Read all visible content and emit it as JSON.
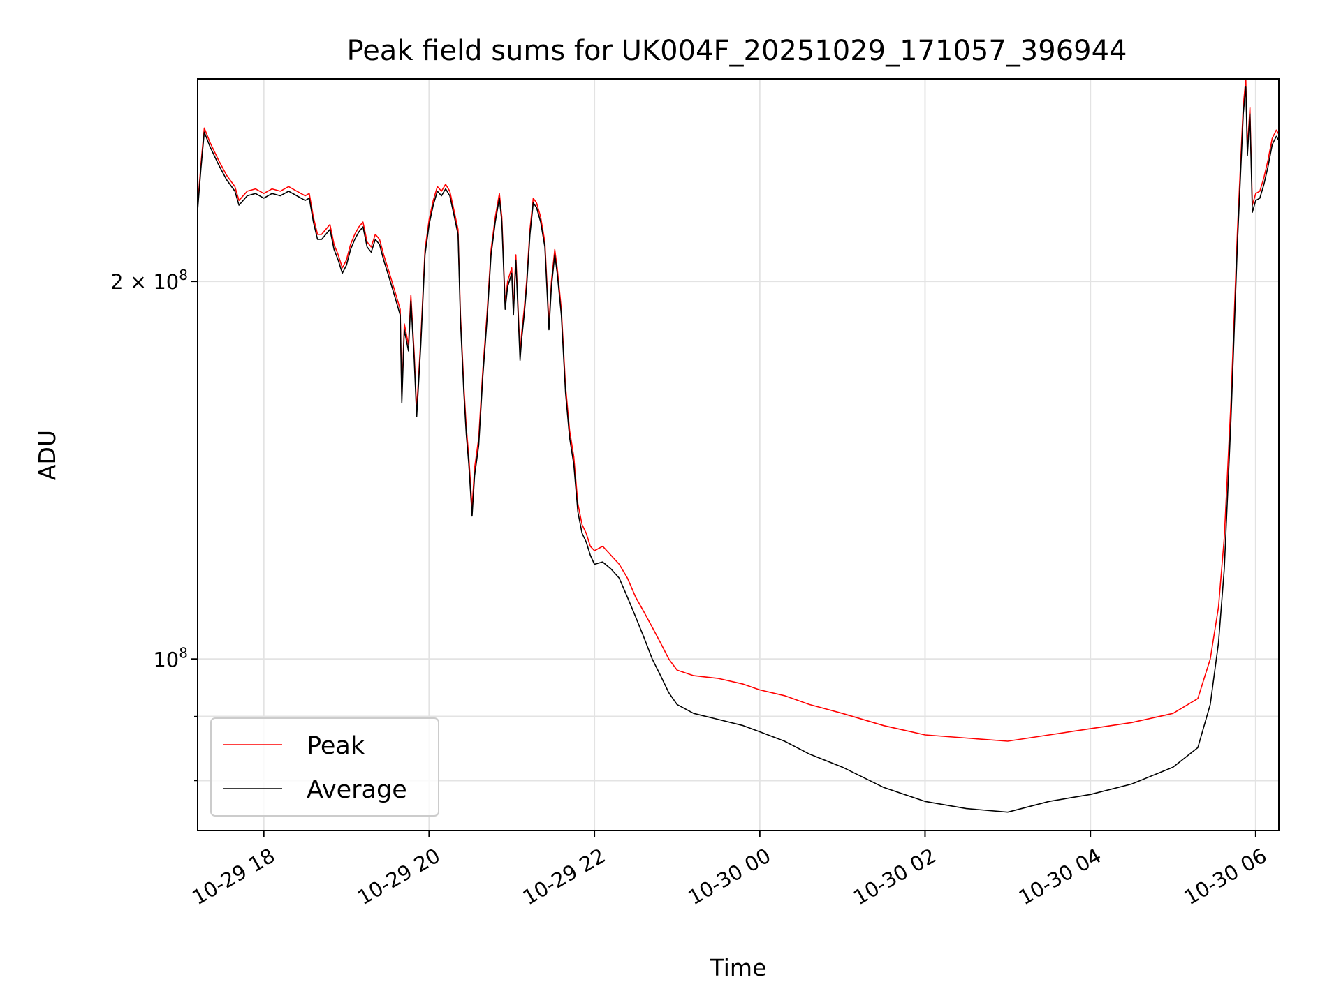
{
  "chart_data": {
    "type": "line",
    "title": "Peak field sums for UK004F_20251029_171057_396944",
    "xlabel": "Time",
    "ylabel": "ADU",
    "yscale": "log",
    "xlim": [
      -0.8,
      12.28
    ],
    "ylim": [
      73000000,
      290000000
    ],
    "grid": true,
    "x_unit": "hours since 2025-10-29 18:00",
    "x_ticks": [
      {
        "value": 0,
        "label": "10-29 18"
      },
      {
        "value": 2,
        "label": "10-29 20"
      },
      {
        "value": 4,
        "label": "10-29 22"
      },
      {
        "value": 6,
        "label": "10-30 00"
      },
      {
        "value": 8,
        "label": "10-30 02"
      },
      {
        "value": 10,
        "label": "10-30 04"
      },
      {
        "value": 12,
        "label": "10-30 06"
      }
    ],
    "y_major_ticks": [
      {
        "value": 100000000,
        "label_base": "10",
        "label_exp": "8"
      },
      {
        "value": 200000000,
        "label_base": "2 × 10",
        "label_exp": "8"
      }
    ],
    "y_minor_ticks": [
      80000000,
      90000000
    ],
    "legend": {
      "location": "lower-left",
      "entries": [
        "Peak",
        "Average"
      ]
    },
    "series": [
      {
        "name": "Peak",
        "color": "#ff0000",
        "points": [
          [
            -0.8,
            230000000
          ],
          [
            -0.76,
            248000000
          ],
          [
            -0.72,
            265000000
          ],
          [
            -0.65,
            258000000
          ],
          [
            -0.55,
            250000000
          ],
          [
            -0.45,
            243000000
          ],
          [
            -0.35,
            238000000
          ],
          [
            -0.3,
            232000000
          ],
          [
            -0.2,
            236000000
          ],
          [
            -0.1,
            237000000
          ],
          [
            0.0,
            235000000
          ],
          [
            0.1,
            237000000
          ],
          [
            0.2,
            236000000
          ],
          [
            0.3,
            238000000
          ],
          [
            0.4,
            236000000
          ],
          [
            0.5,
            234000000
          ],
          [
            0.55,
            235000000
          ],
          [
            0.6,
            225000000
          ],
          [
            0.65,
            218000000
          ],
          [
            0.7,
            218000000
          ],
          [
            0.8,
            222000000
          ],
          [
            0.85,
            214000000
          ],
          [
            0.9,
            210000000
          ],
          [
            0.95,
            205000000
          ],
          [
            1.0,
            208000000
          ],
          [
            1.05,
            214000000
          ],
          [
            1.1,
            218000000
          ],
          [
            1.15,
            221000000
          ],
          [
            1.2,
            223000000
          ],
          [
            1.25,
            215000000
          ],
          [
            1.3,
            213000000
          ],
          [
            1.35,
            218000000
          ],
          [
            1.4,
            216000000
          ],
          [
            1.45,
            210000000
          ],
          [
            1.5,
            205000000
          ],
          [
            1.55,
            200000000
          ],
          [
            1.6,
            195000000
          ],
          [
            1.65,
            190000000
          ],
          [
            1.67,
            162000000
          ],
          [
            1.7,
            185000000
          ],
          [
            1.75,
            178000000
          ],
          [
            1.78,
            195000000
          ],
          [
            1.82,
            175000000
          ],
          [
            1.85,
            158000000
          ],
          [
            1.9,
            180000000
          ],
          [
            1.95,
            212000000
          ],
          [
            2.0,
            224000000
          ],
          [
            2.05,
            232000000
          ],
          [
            2.1,
            238000000
          ],
          [
            2.15,
            236000000
          ],
          [
            2.2,
            239000000
          ],
          [
            2.25,
            236000000
          ],
          [
            2.3,
            228000000
          ],
          [
            2.35,
            220000000
          ],
          [
            2.38,
            188000000
          ],
          [
            2.42,
            165000000
          ],
          [
            2.45,
            153000000
          ],
          [
            2.48,
            145000000
          ],
          [
            2.52,
            132000000
          ],
          [
            2.55,
            142000000
          ],
          [
            2.6,
            150000000
          ],
          [
            2.65,
            170000000
          ],
          [
            2.7,
            188000000
          ],
          [
            2.75,
            212000000
          ],
          [
            2.8,
            225000000
          ],
          [
            2.85,
            235000000
          ],
          [
            2.88,
            225000000
          ],
          [
            2.92,
            192000000
          ],
          [
            2.95,
            200000000
          ],
          [
            3.0,
            205000000
          ],
          [
            3.02,
            190000000
          ],
          [
            3.05,
            210000000
          ],
          [
            3.1,
            175000000
          ],
          [
            3.12,
            182000000
          ],
          [
            3.15,
            190000000
          ],
          [
            3.18,
            200000000
          ],
          [
            3.22,
            220000000
          ],
          [
            3.26,
            233000000
          ],
          [
            3.3,
            231000000
          ],
          [
            3.35,
            225000000
          ],
          [
            3.4,
            215000000
          ],
          [
            3.45,
            185000000
          ],
          [
            3.48,
            200000000
          ],
          [
            3.52,
            212000000
          ],
          [
            3.55,
            205000000
          ],
          [
            3.6,
            190000000
          ],
          [
            3.65,
            165000000
          ],
          [
            3.7,
            152000000
          ],
          [
            3.75,
            145000000
          ],
          [
            3.8,
            133000000
          ],
          [
            3.85,
            128000000
          ],
          [
            3.9,
            126000000
          ],
          [
            3.95,
            123000000
          ],
          [
            4.0,
            122000000
          ],
          [
            4.1,
            123000000
          ],
          [
            4.2,
            121000000
          ],
          [
            4.3,
            119000000
          ],
          [
            4.4,
            116000000
          ],
          [
            4.5,
            112000000
          ],
          [
            4.6,
            109000000
          ],
          [
            4.7,
            106000000
          ],
          [
            4.8,
            103000000
          ],
          [
            4.9,
            100000000
          ],
          [
            5.0,
            98000000
          ],
          [
            5.2,
            97000000
          ],
          [
            5.5,
            96500000
          ],
          [
            5.8,
            95500000
          ],
          [
            6.0,
            94500000
          ],
          [
            6.3,
            93500000
          ],
          [
            6.6,
            92000000
          ],
          [
            7.0,
            90500000
          ],
          [
            7.5,
            88500000
          ],
          [
            8.0,
            87000000
          ],
          [
            8.5,
            86500000
          ],
          [
            9.0,
            86000000
          ],
          [
            9.5,
            87000000
          ],
          [
            10.0,
            88000000
          ],
          [
            10.5,
            89000000
          ],
          [
            11.0,
            90500000
          ],
          [
            11.3,
            93000000
          ],
          [
            11.45,
            100000000
          ],
          [
            11.55,
            110000000
          ],
          [
            11.62,
            125000000
          ],
          [
            11.7,
            160000000
          ],
          [
            11.78,
            220000000
          ],
          [
            11.85,
            276000000
          ],
          [
            11.88,
            290000000
          ],
          [
            11.9,
            255000000
          ],
          [
            11.93,
            275000000
          ],
          [
            11.96,
            230000000
          ],
          [
            12.0,
            235000000
          ],
          [
            12.05,
            236000000
          ],
          [
            12.1,
            242000000
          ],
          [
            12.15,
            250000000
          ],
          [
            12.2,
            260000000
          ],
          [
            12.25,
            264000000
          ],
          [
            12.28,
            262000000
          ]
        ]
      },
      {
        "name": "Average",
        "color": "#000000",
        "points": [
          [
            -0.8,
            228000000
          ],
          [
            -0.76,
            246000000
          ],
          [
            -0.72,
            263000000
          ],
          [
            -0.65,
            256000000
          ],
          [
            -0.55,
            248000000
          ],
          [
            -0.45,
            241000000
          ],
          [
            -0.35,
            236000000
          ],
          [
            -0.3,
            230000000
          ],
          [
            -0.2,
            234000000
          ],
          [
            -0.1,
            235000000
          ],
          [
            0.0,
            233000000
          ],
          [
            0.1,
            235000000
          ],
          [
            0.2,
            234000000
          ],
          [
            0.3,
            236000000
          ],
          [
            0.4,
            234000000
          ],
          [
            0.5,
            232000000
          ],
          [
            0.55,
            233000000
          ],
          [
            0.6,
            223000000
          ],
          [
            0.65,
            216000000
          ],
          [
            0.7,
            216000000
          ],
          [
            0.8,
            220000000
          ],
          [
            0.85,
            212000000
          ],
          [
            0.9,
            208000000
          ],
          [
            0.95,
            203000000
          ],
          [
            1.0,
            206000000
          ],
          [
            1.05,
            212000000
          ],
          [
            1.1,
            216000000
          ],
          [
            1.15,
            219000000
          ],
          [
            1.2,
            221000000
          ],
          [
            1.25,
            213000000
          ],
          [
            1.3,
            211000000
          ],
          [
            1.35,
            216000000
          ],
          [
            1.4,
            214000000
          ],
          [
            1.45,
            208000000
          ],
          [
            1.5,
            203000000
          ],
          [
            1.55,
            198000000
          ],
          [
            1.6,
            193000000
          ],
          [
            1.65,
            188000000
          ],
          [
            1.67,
            160000000
          ],
          [
            1.7,
            183000000
          ],
          [
            1.75,
            176000000
          ],
          [
            1.78,
            193000000
          ],
          [
            1.82,
            173000000
          ],
          [
            1.85,
            156000000
          ],
          [
            1.9,
            178000000
          ],
          [
            1.95,
            210000000
          ],
          [
            2.0,
            222000000
          ],
          [
            2.05,
            230000000
          ],
          [
            2.1,
            236000000
          ],
          [
            2.15,
            234000000
          ],
          [
            2.2,
            237000000
          ],
          [
            2.25,
            234000000
          ],
          [
            2.3,
            226000000
          ],
          [
            2.35,
            218000000
          ],
          [
            2.38,
            186000000
          ],
          [
            2.42,
            163000000
          ],
          [
            2.45,
            151000000
          ],
          [
            2.48,
            143000000
          ],
          [
            2.52,
            130000000
          ],
          [
            2.55,
            140000000
          ],
          [
            2.6,
            148000000
          ],
          [
            2.65,
            168000000
          ],
          [
            2.7,
            186000000
          ],
          [
            2.75,
            210000000
          ],
          [
            2.8,
            223000000
          ],
          [
            2.85,
            233000000
          ],
          [
            2.88,
            223000000
          ],
          [
            2.92,
            190000000
          ],
          [
            2.95,
            198000000
          ],
          [
            3.0,
            203000000
          ],
          [
            3.02,
            188000000
          ],
          [
            3.05,
            208000000
          ],
          [
            3.1,
            173000000
          ],
          [
            3.12,
            180000000
          ],
          [
            3.15,
            188000000
          ],
          [
            3.18,
            198000000
          ],
          [
            3.22,
            218000000
          ],
          [
            3.26,
            231000000
          ],
          [
            3.3,
            229000000
          ],
          [
            3.35,
            223000000
          ],
          [
            3.4,
            213000000
          ],
          [
            3.45,
            183000000
          ],
          [
            3.48,
            198000000
          ],
          [
            3.52,
            210000000
          ],
          [
            3.55,
            203000000
          ],
          [
            3.6,
            188000000
          ],
          [
            3.65,
            163000000
          ],
          [
            3.7,
            150000000
          ],
          [
            3.75,
            143000000
          ],
          [
            3.8,
            131000000
          ],
          [
            3.85,
            126000000
          ],
          [
            3.9,
            124000000
          ],
          [
            3.95,
            121000000
          ],
          [
            4.0,
            119000000
          ],
          [
            4.1,
            119500000
          ],
          [
            4.2,
            118000000
          ],
          [
            4.3,
            116000000
          ],
          [
            4.4,
            112000000
          ],
          [
            4.5,
            108000000
          ],
          [
            4.6,
            104000000
          ],
          [
            4.7,
            100000000
          ],
          [
            4.8,
            97000000
          ],
          [
            4.9,
            94000000
          ],
          [
            5.0,
            92000000
          ],
          [
            5.2,
            90500000
          ],
          [
            5.5,
            89500000
          ],
          [
            5.8,
            88500000
          ],
          [
            6.0,
            87500000
          ],
          [
            6.3,
            86000000
          ],
          [
            6.6,
            84000000
          ],
          [
            7.0,
            82000000
          ],
          [
            7.5,
            79000000
          ],
          [
            8.0,
            77000000
          ],
          [
            8.5,
            76000000
          ],
          [
            9.0,
            75500000
          ],
          [
            9.5,
            77000000
          ],
          [
            10.0,
            78000000
          ],
          [
            10.5,
            79500000
          ],
          [
            11.0,
            82000000
          ],
          [
            11.3,
            85000000
          ],
          [
            11.45,
            92000000
          ],
          [
            11.55,
            103000000
          ],
          [
            11.62,
            118000000
          ],
          [
            11.7,
            155000000
          ],
          [
            11.78,
            215000000
          ],
          [
            11.85,
            272000000
          ],
          [
            11.88,
            286000000
          ],
          [
            11.9,
            252000000
          ],
          [
            11.93,
            272000000
          ],
          [
            11.96,
            227000000
          ],
          [
            12.0,
            232000000
          ],
          [
            12.05,
            233000000
          ],
          [
            12.1,
            239000000
          ],
          [
            12.15,
            247000000
          ],
          [
            12.2,
            257000000
          ],
          [
            12.25,
            261000000
          ],
          [
            12.28,
            259000000
          ]
        ]
      }
    ]
  }
}
